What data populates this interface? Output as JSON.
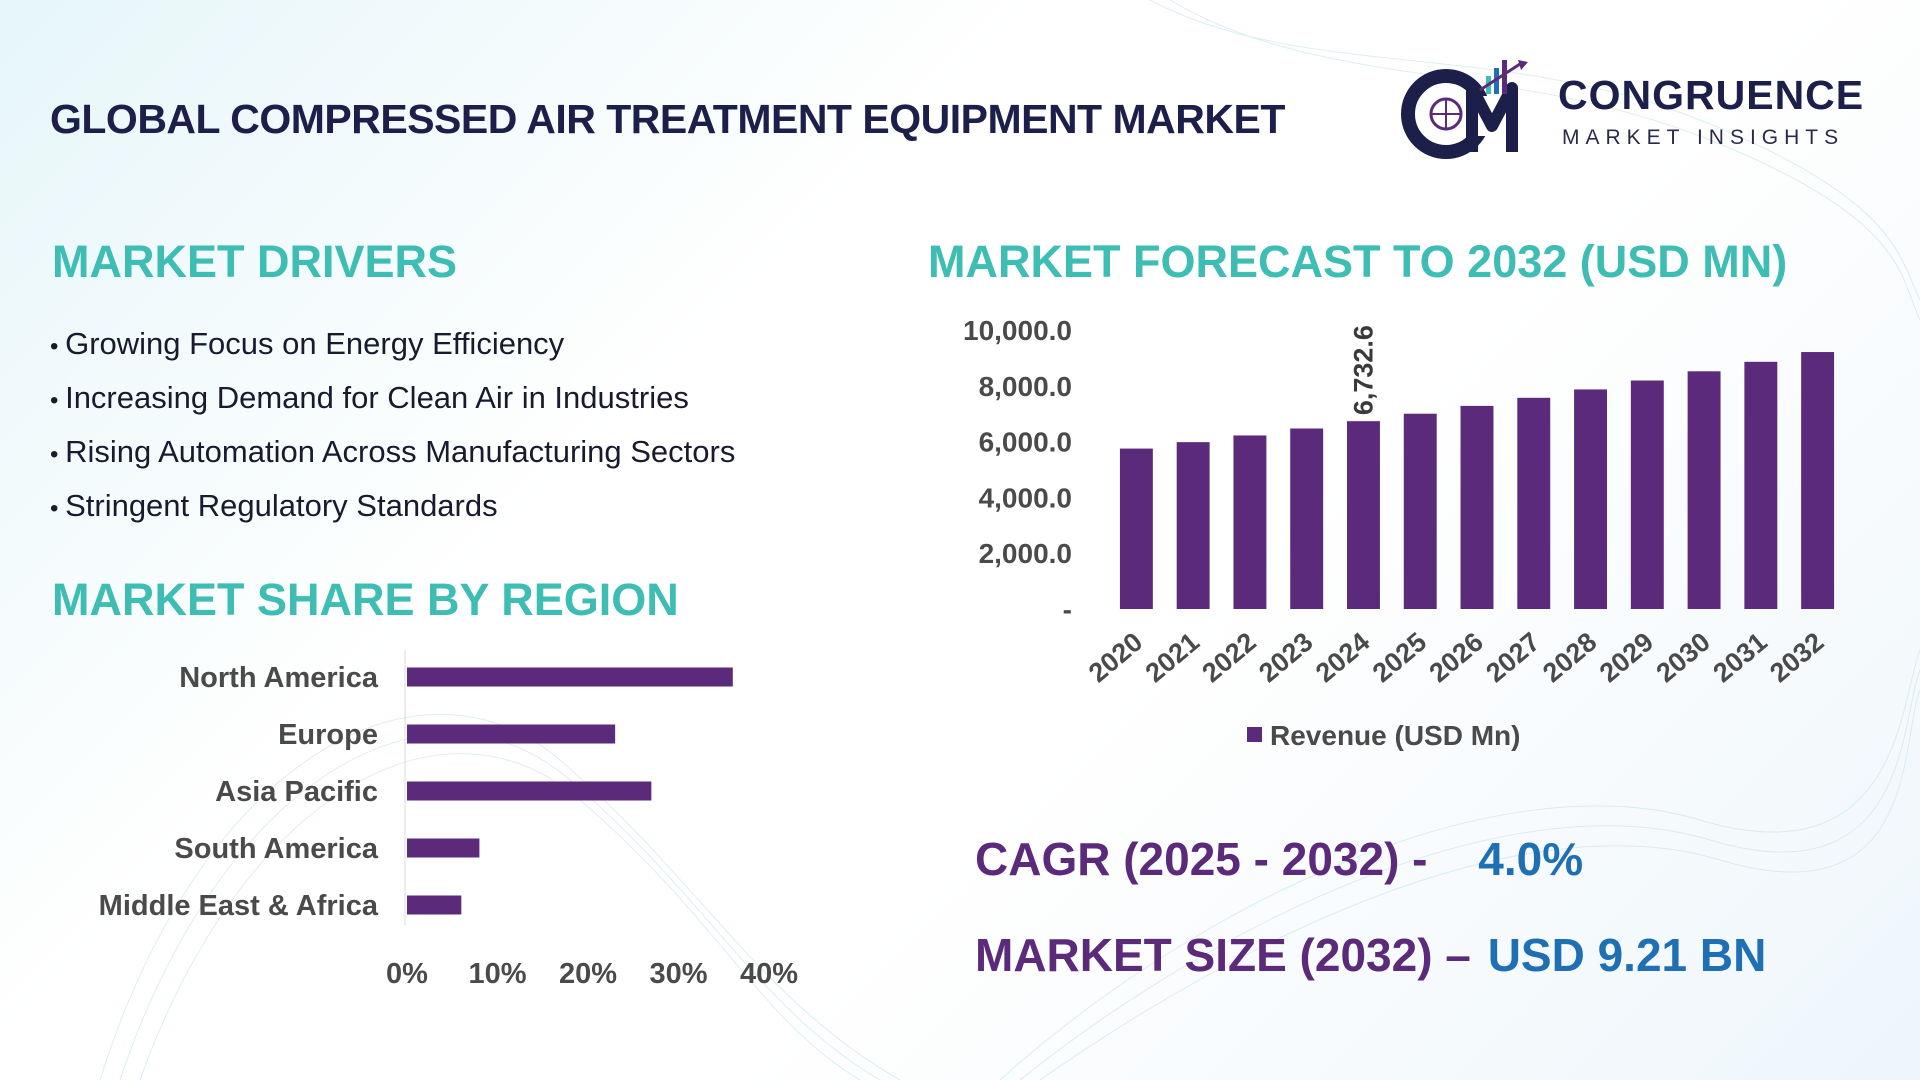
{
  "title": "GLOBAL COMPRESSED AIR TREATMENT EQUIPMENT MARKET",
  "logo": {
    "name": "CONGRUENCE",
    "tagline": "MARKET INSIGHTS",
    "mark": "CM"
  },
  "drivers": {
    "heading": "MARKET DRIVERS",
    "items": [
      "Growing Focus on Energy Efficiency",
      "Increasing Demand for Clean Air in Industries",
      "Rising Automation Across Manufacturing Sectors",
      "Stringent Regulatory Standards"
    ]
  },
  "region": {
    "heading": "MARKET SHARE BY REGION"
  },
  "forecast": {
    "heading": "MARKET FORECAST TO 2032 (USD MN)"
  },
  "kpis": {
    "cagr_label": "CAGR (2025 - 2032) -",
    "cagr_value": "4.0%",
    "size_label": "MARKET SIZE (2032) –",
    "size_value": "USD 9.21 BN"
  },
  "colors": {
    "bar": "#5b2a7a",
    "accent_teal": "#3dbdb3",
    "navy": "#1b1f4a",
    "value_blue": "#1f6fb5"
  },
  "chart_data": [
    {
      "type": "bar",
      "orientation": "vertical",
      "categories": [
        "2020",
        "2021",
        "2022",
        "2023",
        "2024",
        "2025",
        "2026",
        "2027",
        "2028",
        "2029",
        "2030",
        "2031",
        "2032"
      ],
      "series": [
        {
          "name": "Revenue (USD Mn)",
          "values": [
            5750,
            5980,
            6220,
            6470,
            6732.6,
            7000,
            7280,
            7570,
            7870,
            8190,
            8520,
            8860,
            9210
          ]
        }
      ],
      "data_labels": [
        {
          "index": 4,
          "text": "6,732.6"
        }
      ],
      "yticks": [
        "-",
        "2,000.0",
        "4,000.0",
        "6,000.0",
        "8,000.0",
        "10,000.0"
      ],
      "ytick_values": [
        0,
        2000,
        4000,
        6000,
        8000,
        10000
      ],
      "ylim": [
        0,
        10000
      ],
      "legend": "bottom",
      "grid": false
    },
    {
      "type": "bar",
      "orientation": "horizontal",
      "categories": [
        "North America",
        "Europe",
        "Asia Pacific",
        "South America",
        "Middle East & Africa"
      ],
      "values": [
        36,
        23,
        27,
        8,
        6
      ],
      "xticks": [
        "0%",
        "10%",
        "20%",
        "30%",
        "40%"
      ],
      "xtick_values": [
        0,
        10,
        20,
        30,
        40
      ],
      "xlim": [
        0,
        40
      ],
      "grid": false
    }
  ]
}
